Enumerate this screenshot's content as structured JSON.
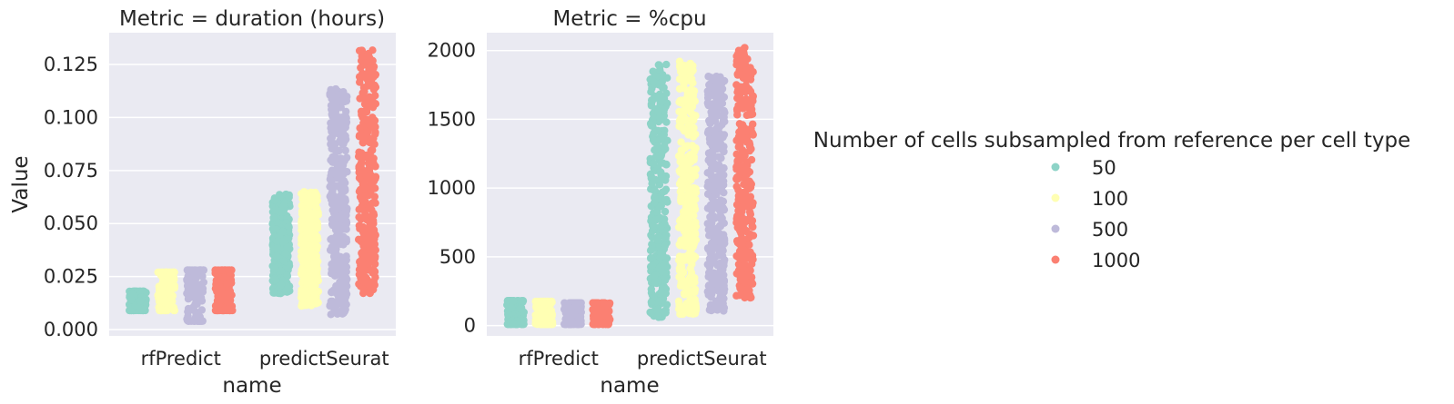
{
  "chart_data": [
    {
      "type": "scatter",
      "subtype": "strip",
      "title": "Metric = duration (hours)",
      "xlabel": "name",
      "ylabel": "Value",
      "categories": [
        "rfPredict",
        "predictSeurat"
      ],
      "ylim": [
        -0.003,
        0.14
      ],
      "yticks": [
        0.0,
        0.025,
        0.05,
        0.075,
        0.1,
        0.125
      ],
      "ytick_labels": [
        "0.000",
        "0.025",
        "0.050",
        "0.075",
        "0.100",
        "0.125"
      ],
      "grid": true,
      "series": [
        {
          "name": "50",
          "color": "#8dd3c7",
          "ranges": [
            [
              0.009,
              0.018
            ],
            [
              0.017,
              0.064
            ]
          ]
        },
        {
          "name": "100",
          "color": "#ffffb3",
          "ranges": [
            [
              0.009,
              0.027
            ],
            [
              0.011,
              0.065
            ]
          ]
        },
        {
          "name": "500",
          "color": "#bebada",
          "ranges": [
            [
              0.004,
              0.028
            ],
            [
              0.007,
              0.114
            ]
          ]
        },
        {
          "name": "1000",
          "color": "#fb8072",
          "ranges": [
            [
              0.009,
              0.028
            ],
            [
              0.017,
              0.132
            ]
          ]
        }
      ]
    },
    {
      "type": "scatter",
      "subtype": "strip",
      "title": "Metric = %cpu",
      "xlabel": "name",
      "ylabel": "",
      "categories": [
        "rfPredict",
        "predictSeurat"
      ],
      "ylim": [
        -75,
        2130
      ],
      "yticks": [
        0,
        500,
        1000,
        1500,
        2000
      ],
      "ytick_labels": [
        "0",
        "500",
        "1000",
        "1500",
        "2000"
      ],
      "grid": true,
      "series": [
        {
          "name": "50",
          "color": "#8dd3c7",
          "ranges": [
            [
              10,
              180
            ],
            [
              60,
              1900
            ]
          ]
        },
        {
          "name": "100",
          "color": "#ffffb3",
          "ranges": [
            [
              10,
              175
            ],
            [
              80,
              1930
            ]
          ]
        },
        {
          "name": "500",
          "color": "#bebada",
          "ranges": [
            [
              10,
              165
            ],
            [
              100,
              1830
            ]
          ]
        },
        {
          "name": "1000",
          "color": "#fb8072",
          "ranges": [
            [
              10,
              165
            ],
            [
              200,
              2030
            ]
          ]
        }
      ]
    }
  ],
  "legend": {
    "title": "Number of cells subsampled from reference per cell type",
    "placement": "right",
    "items": [
      {
        "label": "50",
        "color": "#8dd3c7"
      },
      {
        "label": "100",
        "color": "#ffffb3"
      },
      {
        "label": "500",
        "color": "#bebada"
      },
      {
        "label": "1000",
        "color": "#fb8072"
      }
    ]
  }
}
